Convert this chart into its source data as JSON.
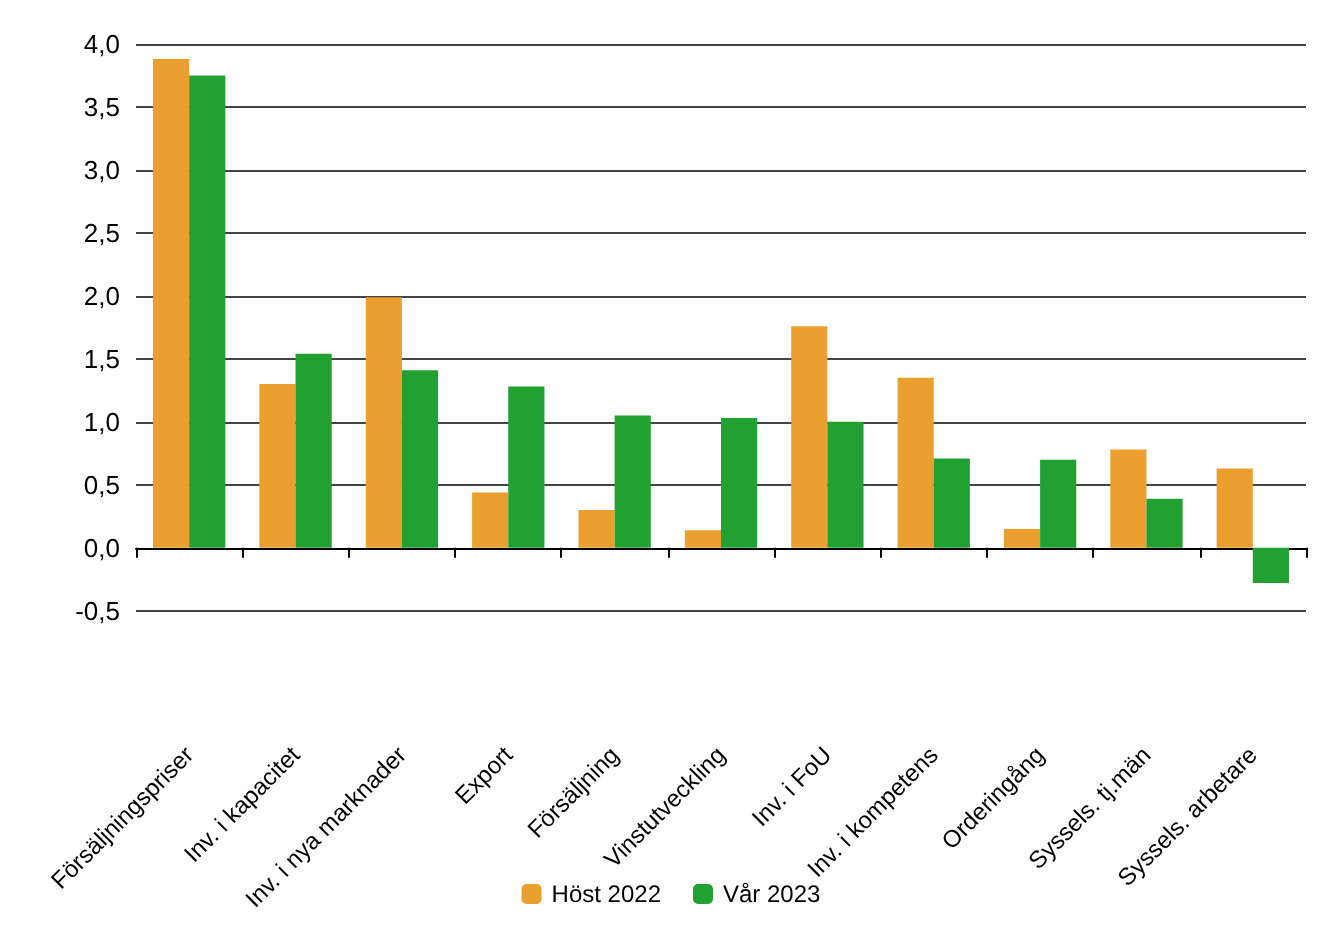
{
  "chart_data": {
    "type": "bar",
    "categories": [
      "Försäljningspriser",
      "Inv. i kapacitet",
      "Inv. i nya marknader",
      "Export",
      "Försäljning",
      "Vinstutveckling",
      "Inv. i FoU",
      "Inv. i kompetens",
      "Orderingång",
      "Syssels. tj.män",
      "Syssels. arbetare"
    ],
    "series": [
      {
        "name": "Höst 2022",
        "color": "#eb9f2f",
        "values": [
          3.88,
          1.3,
          1.99,
          0.44,
          0.3,
          0.14,
          1.76,
          1.35,
          0.15,
          0.78,
          0.63
        ]
      },
      {
        "name": "Vår 2023",
        "color": "#21a131",
        "values": [
          3.75,
          1.54,
          1.41,
          1.28,
          1.05,
          1.03,
          1.0,
          0.71,
          0.7,
          0.39,
          -0.28
        ]
      }
    ],
    "ylim": [
      -0.5,
      4.0
    ],
    "yticks": [
      {
        "value": -0.5,
        "label": "-0,5"
      },
      {
        "value": 0,
        "label": "0,0"
      },
      {
        "value": 0.5,
        "label": "0,5"
      },
      {
        "value": 1,
        "label": "1,0"
      },
      {
        "value": 1.5,
        "label": "1,5"
      },
      {
        "value": 2,
        "label": "2,0"
      },
      {
        "value": 2.5,
        "label": "2,5"
      },
      {
        "value": 3,
        "label": "3,0"
      },
      {
        "value": 3.5,
        "label": "3,5"
      },
      {
        "value": 4,
        "label": "4,0"
      }
    ],
    "grid": "y",
    "legend": "bottom"
  }
}
